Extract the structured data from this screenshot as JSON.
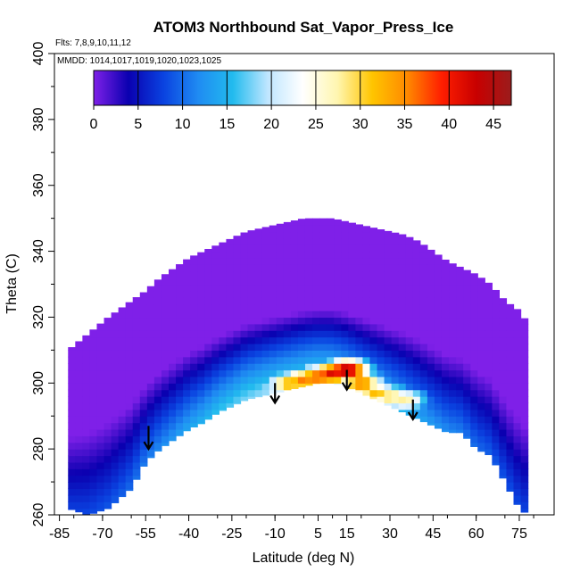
{
  "chart_data": {
    "type": "heatmap",
    "title": "ATOM3 Northbound Sat_Vapor_Press_Ice",
    "subtitle_flights": "Flts: 7,8,9,10,11,12",
    "subtitle_dates": "MMDD: 1014,1017,1019,1020,1023,1025",
    "xlabel": "Latitude (deg N)",
    "ylabel": "Theta (C)",
    "xlim": [
      -85,
      82
    ],
    "ylim": [
      260,
      400
    ],
    "x_ticks": [
      -85,
      -70,
      -55,
      -40,
      -25,
      -10,
      5,
      15,
      30,
      45,
      60,
      75
    ],
    "y_ticks": [
      260,
      280,
      300,
      320,
      340,
      360,
      380,
      400
    ],
    "colorbar": {
      "min": 0,
      "max": 47,
      "ticks": [
        0,
        5,
        10,
        15,
        20,
        25,
        30,
        35,
        40,
        45
      ],
      "stops": [
        "#7F20E8",
        "#0A00B0",
        "#0A42E0",
        "#1F8BF2",
        "#22BBEE",
        "#BFE6FF",
        "#FFFFFF",
        "#FFF6B0",
        "#FFC500",
        "#FF8A00",
        "#FF1E00",
        "#C80000",
        "#9B1C1C"
      ]
    },
    "field": {
      "x": [
        -82,
        -75,
        -68,
        -60,
        -55,
        -50,
        -45,
        -40,
        -35,
        -30,
        -25,
        -20,
        -15,
        -10,
        -5,
        0,
        5,
        10,
        15,
        20,
        25,
        30,
        35,
        40,
        45,
        50,
        55,
        60,
        65,
        70,
        75,
        78
      ],
      "top": [
        310,
        315,
        320,
        325,
        328,
        332,
        335,
        338,
        340,
        342,
        344,
        346,
        347,
        348,
        349,
        350,
        350,
        350,
        349,
        348,
        347,
        346,
        345,
        343,
        340,
        337,
        335,
        333,
        330,
        325,
        322,
        318
      ],
      "bottom": [
        262,
        260,
        262,
        268,
        276,
        280,
        283,
        286,
        288,
        291,
        293,
        295,
        296,
        297,
        298,
        299,
        300,
        300,
        299,
        297,
        295,
        293,
        291,
        289,
        287,
        285,
        285,
        280,
        278,
        270,
        262,
        260
      ],
      "warm_core": [
        {
          "lat": -10,
          "theta": 298,
          "value": 22
        },
        {
          "lat": -5,
          "theta": 300,
          "value": 33
        },
        {
          "lat": 0,
          "theta": 301,
          "value": 36
        },
        {
          "lat": 5,
          "theta": 302,
          "value": 38
        },
        {
          "lat": 10,
          "theta": 303,
          "value": 42
        },
        {
          "lat": 15,
          "theta": 304,
          "value": 45
        },
        {
          "lat": 20,
          "theta": 300,
          "value": 36
        },
        {
          "lat": 25,
          "theta": 297,
          "value": 32
        },
        {
          "lat": 30,
          "theta": 296,
          "value": 30
        },
        {
          "lat": 35,
          "theta": 295,
          "value": 28
        }
      ]
    },
    "arrows": [
      {
        "lat": -54,
        "theta_top": 287,
        "theta_tip": 280
      },
      {
        "lat": -10,
        "theta_top": 300,
        "theta_tip": 294
      },
      {
        "lat": 15,
        "theta_top": 304,
        "theta_tip": 298
      },
      {
        "lat": 38,
        "theta_top": 295,
        "theta_tip": 289
      }
    ]
  }
}
